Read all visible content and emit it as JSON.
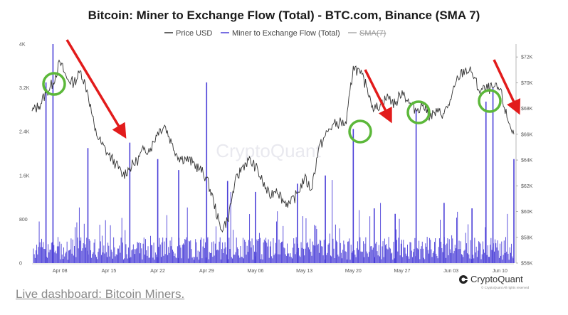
{
  "chart_data": {
    "type": "line",
    "title": "Bitcoin: Miner to Exchange Flow (Total) - BTC.com, Binance (SMA 7)",
    "legend": [
      {
        "name": "Price USD",
        "color": "#333333",
        "style": "line"
      },
      {
        "name": "Miner to Exchange Flow (Total)",
        "color": "#4b3fd8",
        "style": "line"
      },
      {
        "name": "SMA(7)",
        "color": "#aaaaaa",
        "style": "line",
        "struck": true
      }
    ],
    "legend_position": "top-center",
    "left_axis": {
      "ticks": [
        "0",
        "800",
        "1.6K",
        "2.4K",
        "3.2K",
        "4K"
      ],
      "range": [
        0,
        4000
      ]
    },
    "right_axis": {
      "ticks": [
        "$56K",
        "$58K",
        "$60K",
        "$62K",
        "$64K",
        "$66K",
        "$68K",
        "$70K",
        "$72K"
      ],
      "range": [
        56000,
        73000
      ]
    },
    "x_ticks": [
      "Apr 08",
      "Apr 15",
      "Apr 22",
      "Apr 29",
      "May 06",
      "May 13",
      "May 20",
      "May 27",
      "Jun 03",
      "Jun 10"
    ],
    "x_range": [
      "2024-04-04",
      "2024-06-12"
    ],
    "grid": false,
    "series": [
      {
        "name": "Price USD",
        "axis": "right",
        "points": [
          [
            "2024-04-04",
            67800
          ],
          [
            "2024-04-05",
            68200
          ],
          [
            "2024-04-06",
            69200
          ],
          [
            "2024-04-07",
            70000
          ],
          [
            "2024-04-08",
            71600
          ],
          [
            "2024-04-09",
            70300
          ],
          [
            "2024-04-10",
            70000
          ],
          [
            "2024-04-11",
            70900
          ],
          [
            "2024-04-12",
            69200
          ],
          [
            "2024-04-13",
            66300
          ],
          [
            "2024-04-14",
            65200
          ],
          [
            "2024-04-15",
            64400
          ],
          [
            "2024-04-16",
            63700
          ],
          [
            "2024-04-17",
            62800
          ],
          [
            "2024-04-18",
            63400
          ],
          [
            "2024-04-19",
            63900
          ],
          [
            "2024-04-20",
            64800
          ],
          [
            "2024-04-21",
            64900
          ],
          [
            "2024-04-22",
            66200
          ],
          [
            "2024-04-23",
            66700
          ],
          [
            "2024-04-24",
            65300
          ],
          [
            "2024-04-25",
            64200
          ],
          [
            "2024-04-26",
            64100
          ],
          [
            "2024-04-27",
            63800
          ],
          [
            "2024-04-28",
            63300
          ],
          [
            "2024-04-29",
            62600
          ],
          [
            "2024-04-30",
            60800
          ],
          [
            "2024-05-01",
            58600
          ],
          [
            "2024-05-02",
            59300
          ],
          [
            "2024-05-03",
            62100
          ],
          [
            "2024-05-04",
            63400
          ],
          [
            "2024-05-05",
            64000
          ],
          [
            "2024-05-06",
            63500
          ],
          [
            "2024-05-07",
            62300
          ],
          [
            "2024-05-08",
            61200
          ],
          [
            "2024-05-09",
            61800
          ],
          [
            "2024-05-10",
            60800
          ],
          [
            "2024-05-11",
            60600
          ],
          [
            "2024-05-12",
            61400
          ],
          [
            "2024-05-13",
            62600
          ],
          [
            "2024-05-14",
            61700
          ],
          [
            "2024-05-15",
            64800
          ],
          [
            "2024-05-16",
            65900
          ],
          [
            "2024-05-17",
            66700
          ],
          [
            "2024-05-18",
            66900
          ],
          [
            "2024-05-19",
            66800
          ],
          [
            "2024-05-20",
            71300
          ],
          [
            "2024-05-21",
            70700
          ],
          [
            "2024-05-22",
            69600
          ],
          [
            "2024-05-23",
            67900
          ],
          [
            "2024-05-24",
            68400
          ],
          [
            "2024-05-25",
            68900
          ],
          [
            "2024-05-26",
            68300
          ],
          [
            "2024-05-27",
            69400
          ],
          [
            "2024-05-28",
            68400
          ],
          [
            "2024-05-29",
            67900
          ],
          [
            "2024-05-30",
            68300
          ],
          [
            "2024-05-31",
            67400
          ],
          [
            "2024-06-01",
            67700
          ],
          [
            "2024-06-02",
            67600
          ],
          [
            "2024-06-03",
            68700
          ],
          [
            "2024-06-04",
            70400
          ],
          [
            "2024-06-05",
            71000
          ],
          [
            "2024-06-06",
            70800
          ],
          [
            "2024-06-07",
            69400
          ],
          [
            "2024-06-08",
            69500
          ],
          [
            "2024-06-09",
            69600
          ],
          [
            "2024-06-10",
            69500
          ],
          [
            "2024-06-11",
            67300
          ],
          [
            "2024-06-12",
            66000
          ]
        ]
      },
      {
        "name": "Miner to Exchange Flow (Total)",
        "axis": "left",
        "points": [
          [
            "2024-04-06",
            3300
          ],
          [
            "2024-04-07",
            4000
          ],
          [
            "2024-04-12",
            2100
          ],
          [
            "2024-04-18",
            2200
          ],
          [
            "2024-04-22",
            1900
          ],
          [
            "2024-04-25",
            1700
          ],
          [
            "2024-04-29",
            3300
          ],
          [
            "2024-05-02",
            1500
          ],
          [
            "2024-05-06",
            1300
          ],
          [
            "2024-05-12",
            1450
          ],
          [
            "2024-05-16",
            1600
          ],
          [
            "2024-05-20",
            2450
          ],
          [
            "2024-05-23",
            1000
          ],
          [
            "2024-05-26",
            900
          ],
          [
            "2024-05-29",
            2800
          ],
          [
            "2024-06-02",
            1100
          ],
          [
            "2024-06-06",
            1000
          ],
          [
            "2024-06-08",
            2950
          ],
          [
            "2024-06-09",
            3200
          ],
          [
            "2024-06-12",
            1900
          ]
        ]
      }
    ],
    "annotations": {
      "circles": 4,
      "arrows": 3
    },
    "watermark": "CryptoQuant",
    "brand": {
      "name": "CryptoQuant",
      "sub": "© CryptoQuant All rights reserved",
      "color": "#222222"
    },
    "colors": {
      "price": "#333333",
      "flow": "#4b3fd8",
      "arrow": "#e21b1b",
      "circle": "#5cb83a"
    }
  },
  "footer_link": "Live dashboard: Bitcoin Miners."
}
